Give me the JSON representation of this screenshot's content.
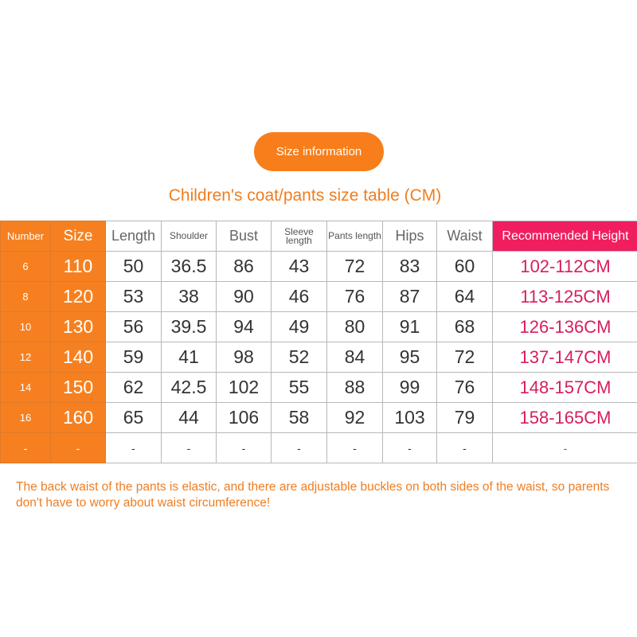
{
  "badge": "Size information",
  "title": "Children's coat/pants size table (CM)",
  "headers": [
    "Number",
    "Size",
    "Length",
    "Shoulder",
    "Bust",
    "Sleeve length",
    "Pants length",
    "Hips",
    "Waist",
    "Recommended Height"
  ],
  "rows": [
    [
      "6",
      "110",
      "50",
      "36.5",
      "86",
      "43",
      "72",
      "83",
      "60",
      "102-112CM"
    ],
    [
      "8",
      "120",
      "53",
      "38",
      "90",
      "46",
      "76",
      "87",
      "64",
      "113-125CM"
    ],
    [
      "10",
      "130",
      "56",
      "39.5",
      "94",
      "49",
      "80",
      "91",
      "68",
      "126-136CM"
    ],
    [
      "12",
      "140",
      "59",
      "41",
      "98",
      "52",
      "84",
      "95",
      "72",
      "137-147CM"
    ],
    [
      "14",
      "150",
      "62",
      "42.5",
      "102",
      "55",
      "88",
      "99",
      "76",
      "148-157CM"
    ],
    [
      "16",
      "160",
      "65",
      "44",
      "106",
      "58",
      "92",
      "103",
      "79",
      "158-165CM"
    ],
    [
      "-",
      "-",
      "-",
      "-",
      "-",
      "-",
      "-",
      "-",
      "-",
      "-"
    ]
  ],
  "note": "The back waist of the pants is elastic, and there are adjustable buckles on both sides of the waist, so parents don't have to worry about waist circumference!"
}
